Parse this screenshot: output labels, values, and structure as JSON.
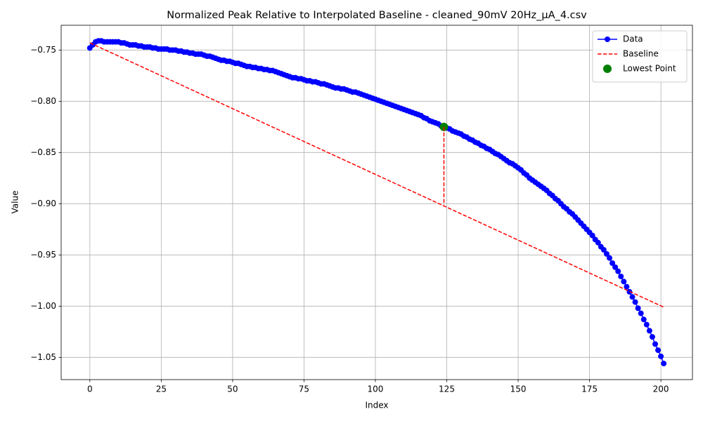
{
  "chart_data": {
    "type": "line",
    "title": "Normalized Peak Relative to Interpolated Baseline - cleaned_90mV 20Hz_μA_4.csv",
    "x_label": "Index",
    "y_label": "Value",
    "xlim": [
      -10.05,
      211.05
    ],
    "ylim": [
      -1.0717,
      -0.7258
    ],
    "xticks": [
      0,
      25,
      50,
      75,
      100,
      125,
      150,
      175,
      200
    ],
    "yticks": [
      {
        "value": -1.05,
        "label": "−1.05"
      },
      {
        "value": -1.0,
        "label": "−1.00"
      },
      {
        "value": -0.95,
        "label": "−0.95"
      },
      {
        "value": -0.9,
        "label": "−0.90"
      },
      {
        "value": -0.85,
        "label": "−0.85"
      },
      {
        "value": -0.8,
        "label": "−0.80"
      },
      {
        "value": -0.75,
        "label": "−0.75"
      }
    ],
    "grid": true,
    "legend": "upper right",
    "series": [
      {
        "name": "Data",
        "color": "#0000ff",
        "style": "line-marker",
        "x": [
          0,
          1,
          2,
          3,
          4,
          5,
          6,
          7,
          8,
          9,
          10,
          11,
          12,
          13,
          14,
          15,
          16,
          17,
          18,
          19,
          20,
          21,
          22,
          23,
          24,
          25,
          26,
          27,
          28,
          29,
          30,
          31,
          32,
          33,
          34,
          35,
          36,
          37,
          38,
          39,
          40,
          41,
          42,
          43,
          44,
          45,
          46,
          47,
          48,
          49,
          50,
          51,
          52,
          53,
          54,
          55,
          56,
          57,
          58,
          59,
          60,
          61,
          62,
          63,
          64,
          65,
          66,
          67,
          68,
          69,
          70,
          71,
          72,
          73,
          74,
          75,
          76,
          77,
          78,
          79,
          80,
          81,
          82,
          83,
          84,
          85,
          86,
          87,
          88,
          89,
          90,
          91,
          92,
          93,
          94,
          95,
          96,
          97,
          98,
          99,
          100,
          101,
          102,
          103,
          104,
          105,
          106,
          107,
          108,
          109,
          110,
          111,
          112,
          113,
          114,
          115,
          116,
          117,
          118,
          119,
          120,
          121,
          122,
          123,
          124,
          125,
          126,
          127,
          128,
          129,
          130,
          131,
          132,
          133,
          134,
          135,
          136,
          137,
          138,
          139,
          140,
          141,
          142,
          143,
          144,
          145,
          146,
          147,
          148,
          149,
          150,
          151,
          152,
          153,
          154,
          155,
          156,
          157,
          158,
          159,
          160,
          161,
          162,
          163,
          164,
          165,
          166,
          167,
          168,
          169,
          170,
          171,
          172,
          173,
          174,
          175,
          176,
          177,
          178,
          179,
          180,
          181,
          182,
          183,
          184,
          185,
          186,
          187,
          188,
          189,
          190,
          191,
          192,
          193,
          194,
          195,
          196,
          197,
          198,
          199,
          200,
          201
        ],
        "values": [
          -0.748,
          -0.745,
          -0.742,
          -0.741,
          -0.741,
          -0.742,
          -0.742,
          -0.742,
          -0.742,
          -0.742,
          -0.742,
          -0.743,
          -0.743,
          -0.744,
          -0.745,
          -0.745,
          -0.745,
          -0.746,
          -0.746,
          -0.747,
          -0.747,
          -0.747,
          -0.748,
          -0.748,
          -0.749,
          -0.749,
          -0.749,
          -0.749,
          -0.75,
          -0.75,
          -0.75,
          -0.751,
          -0.751,
          -0.752,
          -0.752,
          -0.753,
          -0.753,
          -0.754,
          -0.754,
          -0.754,
          -0.755,
          -0.756,
          -0.756,
          -0.757,
          -0.758,
          -0.759,
          -0.76,
          -0.76,
          -0.761,
          -0.761,
          -0.762,
          -0.763,
          -0.763,
          -0.764,
          -0.765,
          -0.766,
          -0.766,
          -0.767,
          -0.767,
          -0.768,
          -0.768,
          -0.769,
          -0.769,
          -0.77,
          -0.77,
          -0.771,
          -0.772,
          -0.773,
          -0.774,
          -0.775,
          -0.776,
          -0.777,
          -0.777,
          -0.778,
          -0.778,
          -0.779,
          -0.78,
          -0.78,
          -0.781,
          -0.781,
          -0.782,
          -0.783,
          -0.783,
          -0.784,
          -0.785,
          -0.786,
          -0.787,
          -0.787,
          -0.788,
          -0.788,
          -0.789,
          -0.79,
          -0.791,
          -0.791,
          -0.792,
          -0.793,
          -0.794,
          -0.795,
          -0.796,
          -0.797,
          -0.798,
          -0.799,
          -0.8,
          -0.801,
          -0.802,
          -0.803,
          -0.804,
          -0.805,
          -0.806,
          -0.807,
          -0.808,
          -0.809,
          -0.81,
          -0.811,
          -0.812,
          -0.813,
          -0.814,
          -0.816,
          -0.817,
          -0.819,
          -0.82,
          -0.821,
          -0.822,
          -0.824,
          -0.825,
          -0.826,
          -0.827,
          -0.829,
          -0.83,
          -0.831,
          -0.832,
          -0.834,
          -0.835,
          -0.837,
          -0.838,
          -0.84,
          -0.841,
          -0.843,
          -0.844,
          -0.846,
          -0.847,
          -0.849,
          -0.851,
          -0.852,
          -0.854,
          -0.856,
          -0.858,
          -0.86,
          -0.861,
          -0.863,
          -0.865,
          -0.867,
          -0.87,
          -0.872,
          -0.875,
          -0.877,
          -0.879,
          -0.881,
          -0.883,
          -0.885,
          -0.887,
          -0.89,
          -0.892,
          -0.895,
          -0.897,
          -0.9,
          -0.903,
          -0.905,
          -0.908,
          -0.91,
          -0.913,
          -0.916,
          -0.919,
          -0.922,
          -0.925,
          -0.928,
          -0.931,
          -0.935,
          -0.938,
          -0.942,
          -0.945,
          -0.949,
          -0.953,
          -0.958,
          -0.962,
          -0.966,
          -0.971,
          -0.976,
          -0.981,
          -0.986,
          -0.991,
          -0.996,
          -1.002,
          -1.007,
          -1.013,
          -1.018,
          -1.024,
          -1.03,
          -1.037,
          -1.043,
          -1.049,
          -1.056
        ]
      },
      {
        "name": "Baseline",
        "color": "#ff0000",
        "style": "dashed",
        "x": [
          0,
          201
        ],
        "values": [
          -0.743,
          -1.001
        ]
      },
      {
        "name": "Lowest Point",
        "color": "#008000",
        "style": "point",
        "x": [
          124
        ],
        "values": [
          -0.825
        ]
      }
    ],
    "drop_line": {
      "color": "#ff0000",
      "x": [
        124,
        124
      ],
      "values": [
        -0.825,
        -0.901
      ]
    }
  }
}
